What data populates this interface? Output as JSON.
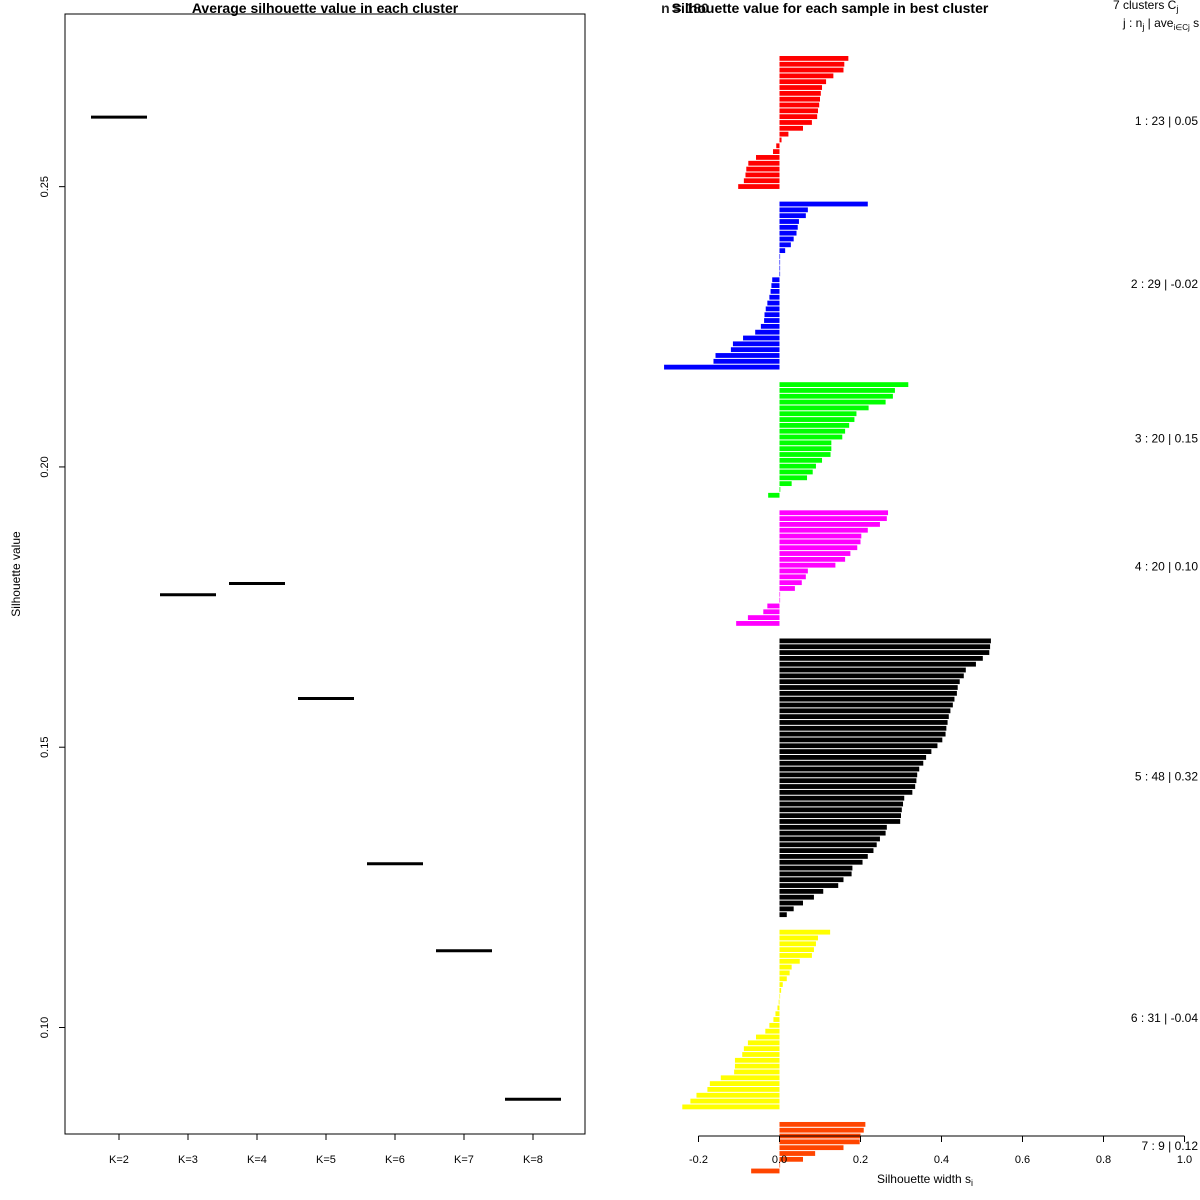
{
  "chart_data": [
    {
      "type": "line",
      "title": "Average silhouette value in each cluster",
      "xlabel": "",
      "ylabel": "Silhouette value",
      "categories": [
        "K=2",
        "K=3",
        "K=4",
        "K=5",
        "K=6",
        "K=7",
        "K=8"
      ],
      "values": [
        0.2624,
        0.1772,
        0.1792,
        0.1587,
        0.1292,
        0.1137,
        0.0872
      ],
      "y_ticks": [
        0.1,
        0.15,
        0.2,
        0.25
      ],
      "y_tick_labels": [
        "0.10",
        "0.15",
        "0.20",
        "0.25"
      ],
      "ylim": [
        0.081,
        0.2808
      ],
      "grid": false
    },
    {
      "type": "bar",
      "orientation": "horizontal",
      "title": "Silhouette value for each sample in best cluster",
      "title_overlap": "n = 180",
      "xlabel": "Silhouette width s",
      "xlabel_sub": "i",
      "xlim": [
        -0.2,
        1.0
      ],
      "x_ticks": [
        -0.2,
        0.0,
        0.2,
        0.4,
        0.6,
        0.8,
        1.0
      ],
      "x_tick_labels": [
        "-0.2",
        "0.0",
        "0.2",
        "0.4",
        "0.6",
        "0.8",
        "1.0"
      ],
      "legend_header_1": "7 clusters  C",
      "legend_header_1_sub": "j",
      "legend_header_2": "j :  n",
      "legend_header_2_sub": "j",
      "legend_header_2_mid": " | ave",
      "legend_header_2_sub2": "i∈Cj",
      "legend_header_2_end": "  s",
      "clusters": [
        {
          "label": "1 :  23  |  0.05",
          "color": "#ff0000",
          "values": [
            0.17,
            0.16,
            0.158,
            0.133,
            0.115,
            0.105,
            0.102,
            0.1,
            0.098,
            0.095,
            0.093,
            0.08,
            0.058,
            0.022,
            0.005,
            -0.008,
            -0.016,
            -0.058,
            -0.077,
            -0.082,
            -0.084,
            -0.088,
            -0.102
          ]
        },
        {
          "label": "2 :  29  |  -0.02",
          "color": "#0000ff",
          "values": [
            0.218,
            0.07,
            0.065,
            0.048,
            0.045,
            0.042,
            0.035,
            0.028,
            0.014,
            0.0,
            0.0,
            0.0,
            0.0,
            -0.018,
            -0.02,
            -0.022,
            -0.025,
            -0.03,
            -0.034,
            -0.037,
            -0.038,
            -0.046,
            -0.06,
            -0.09,
            -0.115,
            -0.12,
            -0.158,
            -0.163,
            -0.285
          ]
        },
        {
          "label": "3 :  20  |  0.15",
          "color": "#00ff00",
          "values": [
            0.318,
            0.285,
            0.28,
            0.262,
            0.22,
            0.19,
            0.185,
            0.172,
            0.162,
            0.155,
            0.128,
            0.128,
            0.126,
            0.105,
            0.09,
            0.082,
            0.068,
            0.03,
            0.002,
            -0.028
          ]
        },
        {
          "label": "4 :  20  |  0.10",
          "color": "#ff00ff",
          "values": [
            0.268,
            0.265,
            0.248,
            0.218,
            0.202,
            0.2,
            0.192,
            0.175,
            0.162,
            0.138,
            0.07,
            0.065,
            0.055,
            0.038,
            0.0,
            0.0,
            -0.03,
            -0.04,
            -0.078,
            -0.107
          ]
        },
        {
          "label": "5 :  48  |  0.32",
          "color": "#000000",
          "values": [
            0.522,
            0.52,
            0.518,
            0.502,
            0.485,
            0.46,
            0.455,
            0.445,
            0.44,
            0.438,
            0.432,
            0.428,
            0.422,
            0.418,
            0.415,
            0.412,
            0.41,
            0.402,
            0.39,
            0.375,
            0.362,
            0.355,
            0.345,
            0.34,
            0.338,
            0.335,
            0.328,
            0.308,
            0.305,
            0.302,
            0.3,
            0.298,
            0.265,
            0.262,
            0.248,
            0.24,
            0.232,
            0.218,
            0.205,
            0.18,
            0.178,
            0.158,
            0.145,
            0.108,
            0.085,
            0.058,
            0.035,
            0.018
          ]
        },
        {
          "label": "6 :  31  |  -0.04",
          "color": "#ffff00",
          "values": [
            0.125,
            0.095,
            0.09,
            0.085,
            0.08,
            0.05,
            0.03,
            0.025,
            0.018,
            0.008,
            0.004,
            0.0,
            -0.002,
            -0.005,
            -0.01,
            -0.015,
            -0.025,
            -0.035,
            -0.058,
            -0.078,
            -0.088,
            -0.092,
            -0.11,
            -0.11,
            -0.112,
            -0.145,
            -0.172,
            -0.178,
            -0.205,
            -0.22,
            -0.24
          ]
        },
        {
          "label": "7 :  9  |  0.12",
          "color": "#ff4500",
          "values": [
            0.212,
            0.208,
            0.2,
            0.198,
            0.158,
            0.088,
            0.058,
            0.0,
            -0.07
          ]
        }
      ]
    }
  ]
}
